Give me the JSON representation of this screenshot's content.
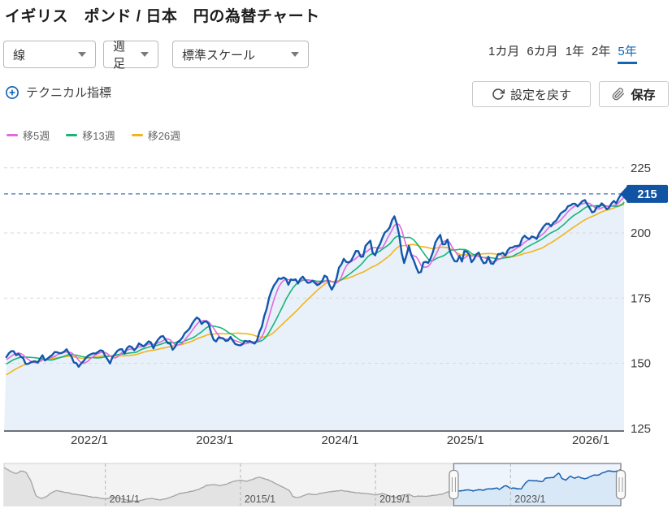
{
  "header": {
    "title": "イギリス　ポンド / 日本　円の為替チャート"
  },
  "toolbar": {
    "chart_type": {
      "value": "線"
    },
    "timeframe": {
      "value": "週足"
    },
    "scale": {
      "value": "標準スケール"
    },
    "periods": [
      {
        "label": "1カ月",
        "active": false
      },
      {
        "label": "6カ月",
        "active": false
      },
      {
        "label": "1年",
        "active": false
      },
      {
        "label": "2年",
        "active": false
      },
      {
        "label": "5年",
        "active": true
      }
    ],
    "technical_label": "テクニカル指標",
    "reset_label": "設定を戻す",
    "save_label": "保存"
  },
  "legend": [
    {
      "label": "移5週",
      "color": "#e06adf"
    },
    {
      "label": "移13週",
      "color": "#17b577"
    },
    {
      "label": "移26週",
      "color": "#f2b41c"
    }
  ],
  "colors": {
    "price": "#1257ab",
    "area": "#e8f1fa",
    "ma5": "#e06adf",
    "ma13": "#17b577",
    "ma26": "#f2b41c",
    "current_line": "#3b74b8",
    "tag_bg": "#1254a4",
    "tag_text": "#ffffff",
    "grid": "#d8d8d8",
    "axis": "#444444",
    "tick_text": "#3a3a3a",
    "accent": "#1465b4",
    "nav_gray_line": "#a3a3a3",
    "nav_gray_fill": "#e3e3e3",
    "nav_gray_bg": "#f3f3f3",
    "nav_gray_border": "#cfcfcf",
    "nav_blue_line": "#1b62b2",
    "nav_blue_fill": "#d8e8f7",
    "nav_blue_bg": "#edf4fc",
    "nav_sel_border": "#808080",
    "nav_tick_text": "#555555",
    "nav_dash": "#b5b5b5"
  },
  "chart_data": {
    "type": "line",
    "title": "GBP/JPY weekly, 5-year view",
    "current_price": 215,
    "y_ticks": [
      225,
      200,
      175,
      150,
      125
    ],
    "ylim": [
      124,
      229
    ],
    "xlim": [
      2021.319,
      2026.266
    ],
    "x_ticks": [
      {
        "label": "2022/1",
        "t": 2022
      },
      {
        "label": "2023/1",
        "t": 2023
      },
      {
        "label": "2024/1",
        "t": 2024
      },
      {
        "label": "2025/1",
        "t": 2025
      },
      {
        "label": "2026/1",
        "t": 2026
      }
    ],
    "series_labels": {
      "price": "GBP/JPY",
      "ma5": "移5週",
      "ma13": "移13週",
      "ma26": "移26週"
    },
    "pre_anchors": [
      [
        2020.78,
        137.5
      ],
      [
        2020.9,
        139.5
      ],
      [
        2021.0,
        141.5
      ],
      [
        2021.08,
        145
      ],
      [
        2021.16,
        148.5
      ],
      [
        2021.24,
        150.5
      ],
      [
        2021.319,
        151.5
      ]
    ],
    "price_anchors": [
      [
        2021.319,
        151.5
      ],
      [
        2021.352,
        153
      ],
      [
        2021.384,
        155
      ],
      [
        2021.423,
        153.5
      ],
      [
        2021.462,
        151.8
      ],
      [
        2021.501,
        149.6
      ],
      [
        2021.54,
        151.2
      ],
      [
        2021.579,
        150.2
      ],
      [
        2021.617,
        152.8
      ],
      [
        2021.656,
        151.4
      ],
      [
        2021.695,
        153.4
      ],
      [
        2021.734,
        155.2
      ],
      [
        2021.773,
        154
      ],
      [
        2021.812,
        155.8
      ],
      [
        2021.851,
        152.6
      ],
      [
        2021.89,
        150
      ],
      [
        2021.929,
        148.8
      ],
      [
        2021.968,
        152.2
      ],
      [
        2022.006,
        154.2
      ],
      [
        2022.045,
        152.8
      ],
      [
        2022.084,
        155.4
      ],
      [
        2022.123,
        153.2
      ],
      [
        2022.162,
        150.4
      ],
      [
        2022.201,
        153.6
      ],
      [
        2022.24,
        155.9
      ],
      [
        2022.279,
        154.4
      ],
      [
        2022.318,
        157
      ],
      [
        2022.357,
        155.2
      ],
      [
        2022.395,
        157.8
      ],
      [
        2022.434,
        156.2
      ],
      [
        2022.473,
        158
      ],
      [
        2022.512,
        156.4
      ],
      [
        2022.551,
        159.2
      ],
      [
        2022.59,
        160.8
      ],
      [
        2022.629,
        158.2
      ],
      [
        2022.668,
        155
      ],
      [
        2022.707,
        158.4
      ],
      [
        2022.746,
        160.2
      ],
      [
        2022.784,
        163
      ],
      [
        2022.823,
        165.6
      ],
      [
        2022.862,
        167.6
      ],
      [
        2022.901,
        164.4
      ],
      [
        2022.94,
        166.8
      ],
      [
        2022.966,
        162.8
      ],
      [
        2023.005,
        157.6
      ],
      [
        2023.044,
        160.4
      ],
      [
        2023.083,
        158.2
      ],
      [
        2023.122,
        160
      ],
      [
        2023.161,
        157.4
      ],
      [
        2023.199,
        156.6
      ],
      [
        2023.238,
        159
      ],
      [
        2023.277,
        158
      ],
      [
        2023.316,
        156.8
      ],
      [
        2023.349,
        160.5
      ],
      [
        2023.381,
        165.5
      ],
      [
        2023.413,
        171
      ],
      [
        2023.446,
        176.5
      ],
      [
        2023.478,
        180
      ],
      [
        2023.511,
        182
      ],
      [
        2023.543,
        182.8
      ],
      [
        2023.588,
        180.8
      ],
      [
        2023.627,
        182.4
      ],
      [
        2023.666,
        181.2
      ],
      [
        2023.705,
        182.8
      ],
      [
        2023.744,
        180.6
      ],
      [
        2023.783,
        182
      ],
      [
        2023.822,
        179.8
      ],
      [
        2023.861,
        182.4
      ],
      [
        2023.887,
        184.4
      ],
      [
        2023.913,
        180.2
      ],
      [
        2023.938,
        178
      ],
      [
        2023.971,
        183
      ],
      [
        2023.997,
        187
      ],
      [
        2024.036,
        190
      ],
      [
        2024.068,
        188
      ],
      [
        2024.1,
        191
      ],
      [
        2024.139,
        193.5
      ],
      [
        2024.172,
        190
      ],
      [
        2024.204,
        194.5
      ],
      [
        2024.237,
        198.3
      ],
      [
        2024.269,
        190.2
      ],
      [
        2024.301,
        194
      ],
      [
        2024.334,
        197.5
      ],
      [
        2024.366,
        200.5
      ],
      [
        2024.399,
        203
      ],
      [
        2024.431,
        206.3
      ],
      [
        2024.464,
        202
      ],
      [
        2024.489,
        193
      ],
      [
        2024.515,
        188.2
      ],
      [
        2024.548,
        195
      ],
      [
        2024.58,
        190.5
      ],
      [
        2024.613,
        186.5
      ],
      [
        2024.639,
        183.6
      ],
      [
        2024.671,
        190.5
      ],
      [
        2024.703,
        187.8
      ],
      [
        2024.736,
        192.5
      ],
      [
        2024.768,
        196.5
      ],
      [
        2024.794,
        199.4
      ],
      [
        2024.827,
        194.2
      ],
      [
        2024.859,
        197
      ],
      [
        2024.891,
        190.5
      ],
      [
        2024.924,
        187.6
      ],
      [
        2024.95,
        192.3
      ],
      [
        2024.976,
        189.2
      ],
      [
        2025.002,
        194.4
      ],
      [
        2025.034,
        190.8
      ],
      [
        2025.06,
        188.4
      ],
      [
        2025.093,
        193.2
      ],
      [
        2025.125,
        190.2
      ],
      [
        2025.157,
        187.9
      ],
      [
        2025.183,
        191.4
      ],
      [
        2025.216,
        186.9
      ],
      [
        2025.248,
        190.3
      ],
      [
        2025.28,
        192.6
      ],
      [
        2025.313,
        191.2
      ],
      [
        2025.352,
        194.2
      ],
      [
        2025.391,
        195.8
      ],
      [
        2025.43,
        194.3
      ],
      [
        2025.468,
        199.3
      ],
      [
        2025.507,
        197.2
      ],
      [
        2025.54,
        199.1
      ],
      [
        2025.572,
        198.2
      ],
      [
        2025.611,
        201.6
      ],
      [
        2025.65,
        203.9
      ],
      [
        2025.689,
        202.6
      ],
      [
        2025.734,
        205.6
      ],
      [
        2025.773,
        207.6
      ],
      [
        2025.812,
        209.9
      ],
      [
        2025.851,
        211.4
      ],
      [
        2025.89,
        210.3
      ],
      [
        2025.935,
        212.9
      ],
      [
        2025.974,
        211.6
      ],
      [
        2026.013,
        207.9
      ],
      [
        2026.052,
        209.6
      ],
      [
        2026.091,
        210.9
      ],
      [
        2026.13,
        209.4
      ],
      [
        2026.168,
        211.3
      ],
      [
        2026.207,
        212.1
      ],
      [
        2026.246,
        215.2
      ],
      [
        2026.266,
        215.5
      ]
    ],
    "navigator": {
      "range": [
        2008.0,
        2026.266
      ],
      "selected": [
        2021.319,
        2026.266
      ],
      "x_ticks": [
        {
          "label": "2011/1",
          "t": 2011
        },
        {
          "label": "2015/1",
          "t": 2015
        },
        {
          "label": "2019/1",
          "t": 2019
        },
        {
          "label": "2023/1",
          "t": 2023
        }
      ],
      "anchors": [
        [
          2008,
          222
        ],
        [
          2008.2,
          210
        ],
        [
          2008.35,
          203
        ],
        [
          2008.5,
          212
        ],
        [
          2008.65,
          208
        ],
        [
          2008.8,
          180
        ],
        [
          2008.95,
          135
        ],
        [
          2009.1,
          127
        ],
        [
          2009.25,
          133
        ],
        [
          2009.4,
          145
        ],
        [
          2009.55,
          152
        ],
        [
          2009.7,
          149
        ],
        [
          2009.85,
          146
        ],
        [
          2010,
          142
        ],
        [
          2010.2,
          139
        ],
        [
          2010.4,
          136
        ],
        [
          2010.6,
          132
        ],
        [
          2010.8,
          130
        ],
        [
          2011,
          126
        ],
        [
          2011.2,
          131
        ],
        [
          2011.4,
          129
        ],
        [
          2011.6,
          124
        ],
        [
          2011.8,
          119
        ],
        [
          2012,
          120
        ],
        [
          2012.2,
          126
        ],
        [
          2012.4,
          128
        ],
        [
          2012.6,
          123
        ],
        [
          2012.8,
          127
        ],
        [
          2013,
          134
        ],
        [
          2013.2,
          143
        ],
        [
          2013.4,
          146
        ],
        [
          2013.6,
          150
        ],
        [
          2013.8,
          157
        ],
        [
          2014,
          168
        ],
        [
          2014.2,
          170
        ],
        [
          2014.4,
          167
        ],
        [
          2014.6,
          172
        ],
        [
          2014.8,
          180
        ],
        [
          2015,
          183
        ],
        [
          2015.2,
          180
        ],
        [
          2015.4,
          188
        ],
        [
          2015.55,
          193
        ],
        [
          2015.7,
          188
        ],
        [
          2015.85,
          184
        ],
        [
          2016,
          175
        ],
        [
          2016.15,
          168
        ],
        [
          2016.3,
          160
        ],
        [
          2016.45,
          152
        ],
        [
          2016.55,
          134
        ],
        [
          2016.7,
          130
        ],
        [
          2016.85,
          135
        ],
        [
          2017,
          142
        ],
        [
          2017.2,
          139
        ],
        [
          2017.4,
          144
        ],
        [
          2017.6,
          147
        ],
        [
          2017.8,
          150
        ],
        [
          2018,
          152
        ],
        [
          2018.2,
          149
        ],
        [
          2018.4,
          146
        ],
        [
          2018.6,
          144
        ],
        [
          2018.8,
          142
        ],
        [
          2019,
          138
        ],
        [
          2019.2,
          143
        ],
        [
          2019.4,
          136
        ],
        [
          2019.6,
          131
        ],
        [
          2019.8,
          138
        ],
        [
          2020,
          140
        ],
        [
          2020.15,
          133
        ],
        [
          2020.3,
          135
        ],
        [
          2020.5,
          134
        ],
        [
          2020.7,
          137
        ],
        [
          2020.85,
          139
        ],
        [
          2021,
          141.5
        ],
        [
          2021.16,
          148.5
        ],
        [
          2021.319,
          151.5
        ],
        [
          2021.4,
          152.5
        ],
        [
          2021.5,
          150.5
        ],
        [
          2021.62,
          152.5
        ],
        [
          2021.75,
          154.5
        ],
        [
          2021.9,
          150
        ],
        [
          2022,
          154
        ],
        [
          2022.1,
          154.5
        ],
        [
          2022.2,
          152.5
        ],
        [
          2022.3,
          156.5
        ],
        [
          2022.45,
          157
        ],
        [
          2022.6,
          159.5
        ],
        [
          2022.67,
          155
        ],
        [
          2022.8,
          164.5
        ],
        [
          2022.88,
          167
        ],
        [
          2023,
          158
        ],
        [
          2023.1,
          159.5
        ],
        [
          2023.2,
          157
        ],
        [
          2023.32,
          157
        ],
        [
          2023.45,
          176.5
        ],
        [
          2023.55,
          182.5
        ],
        [
          2023.7,
          182
        ],
        [
          2023.85,
          181
        ],
        [
          2023.94,
          178.5
        ],
        [
          2024.04,
          190
        ],
        [
          2024.17,
          190.5
        ],
        [
          2024.27,
          191
        ],
        [
          2024.43,
          206
        ],
        [
          2024.52,
          188.5
        ],
        [
          2024.64,
          184
        ],
        [
          2024.77,
          196.5
        ],
        [
          2024.9,
          189
        ],
        [
          2025,
          194
        ],
        [
          2025.1,
          190
        ],
        [
          2025.22,
          187.5
        ],
        [
          2025.35,
          194
        ],
        [
          2025.47,
          199
        ],
        [
          2025.6,
          199
        ],
        [
          2025.73,
          205.5
        ],
        [
          2025.85,
          211
        ],
        [
          2025.97,
          211.5
        ],
        [
          2026.05,
          209.5
        ],
        [
          2026.15,
          210.5
        ],
        [
          2026.266,
          215.5
        ]
      ]
    }
  }
}
